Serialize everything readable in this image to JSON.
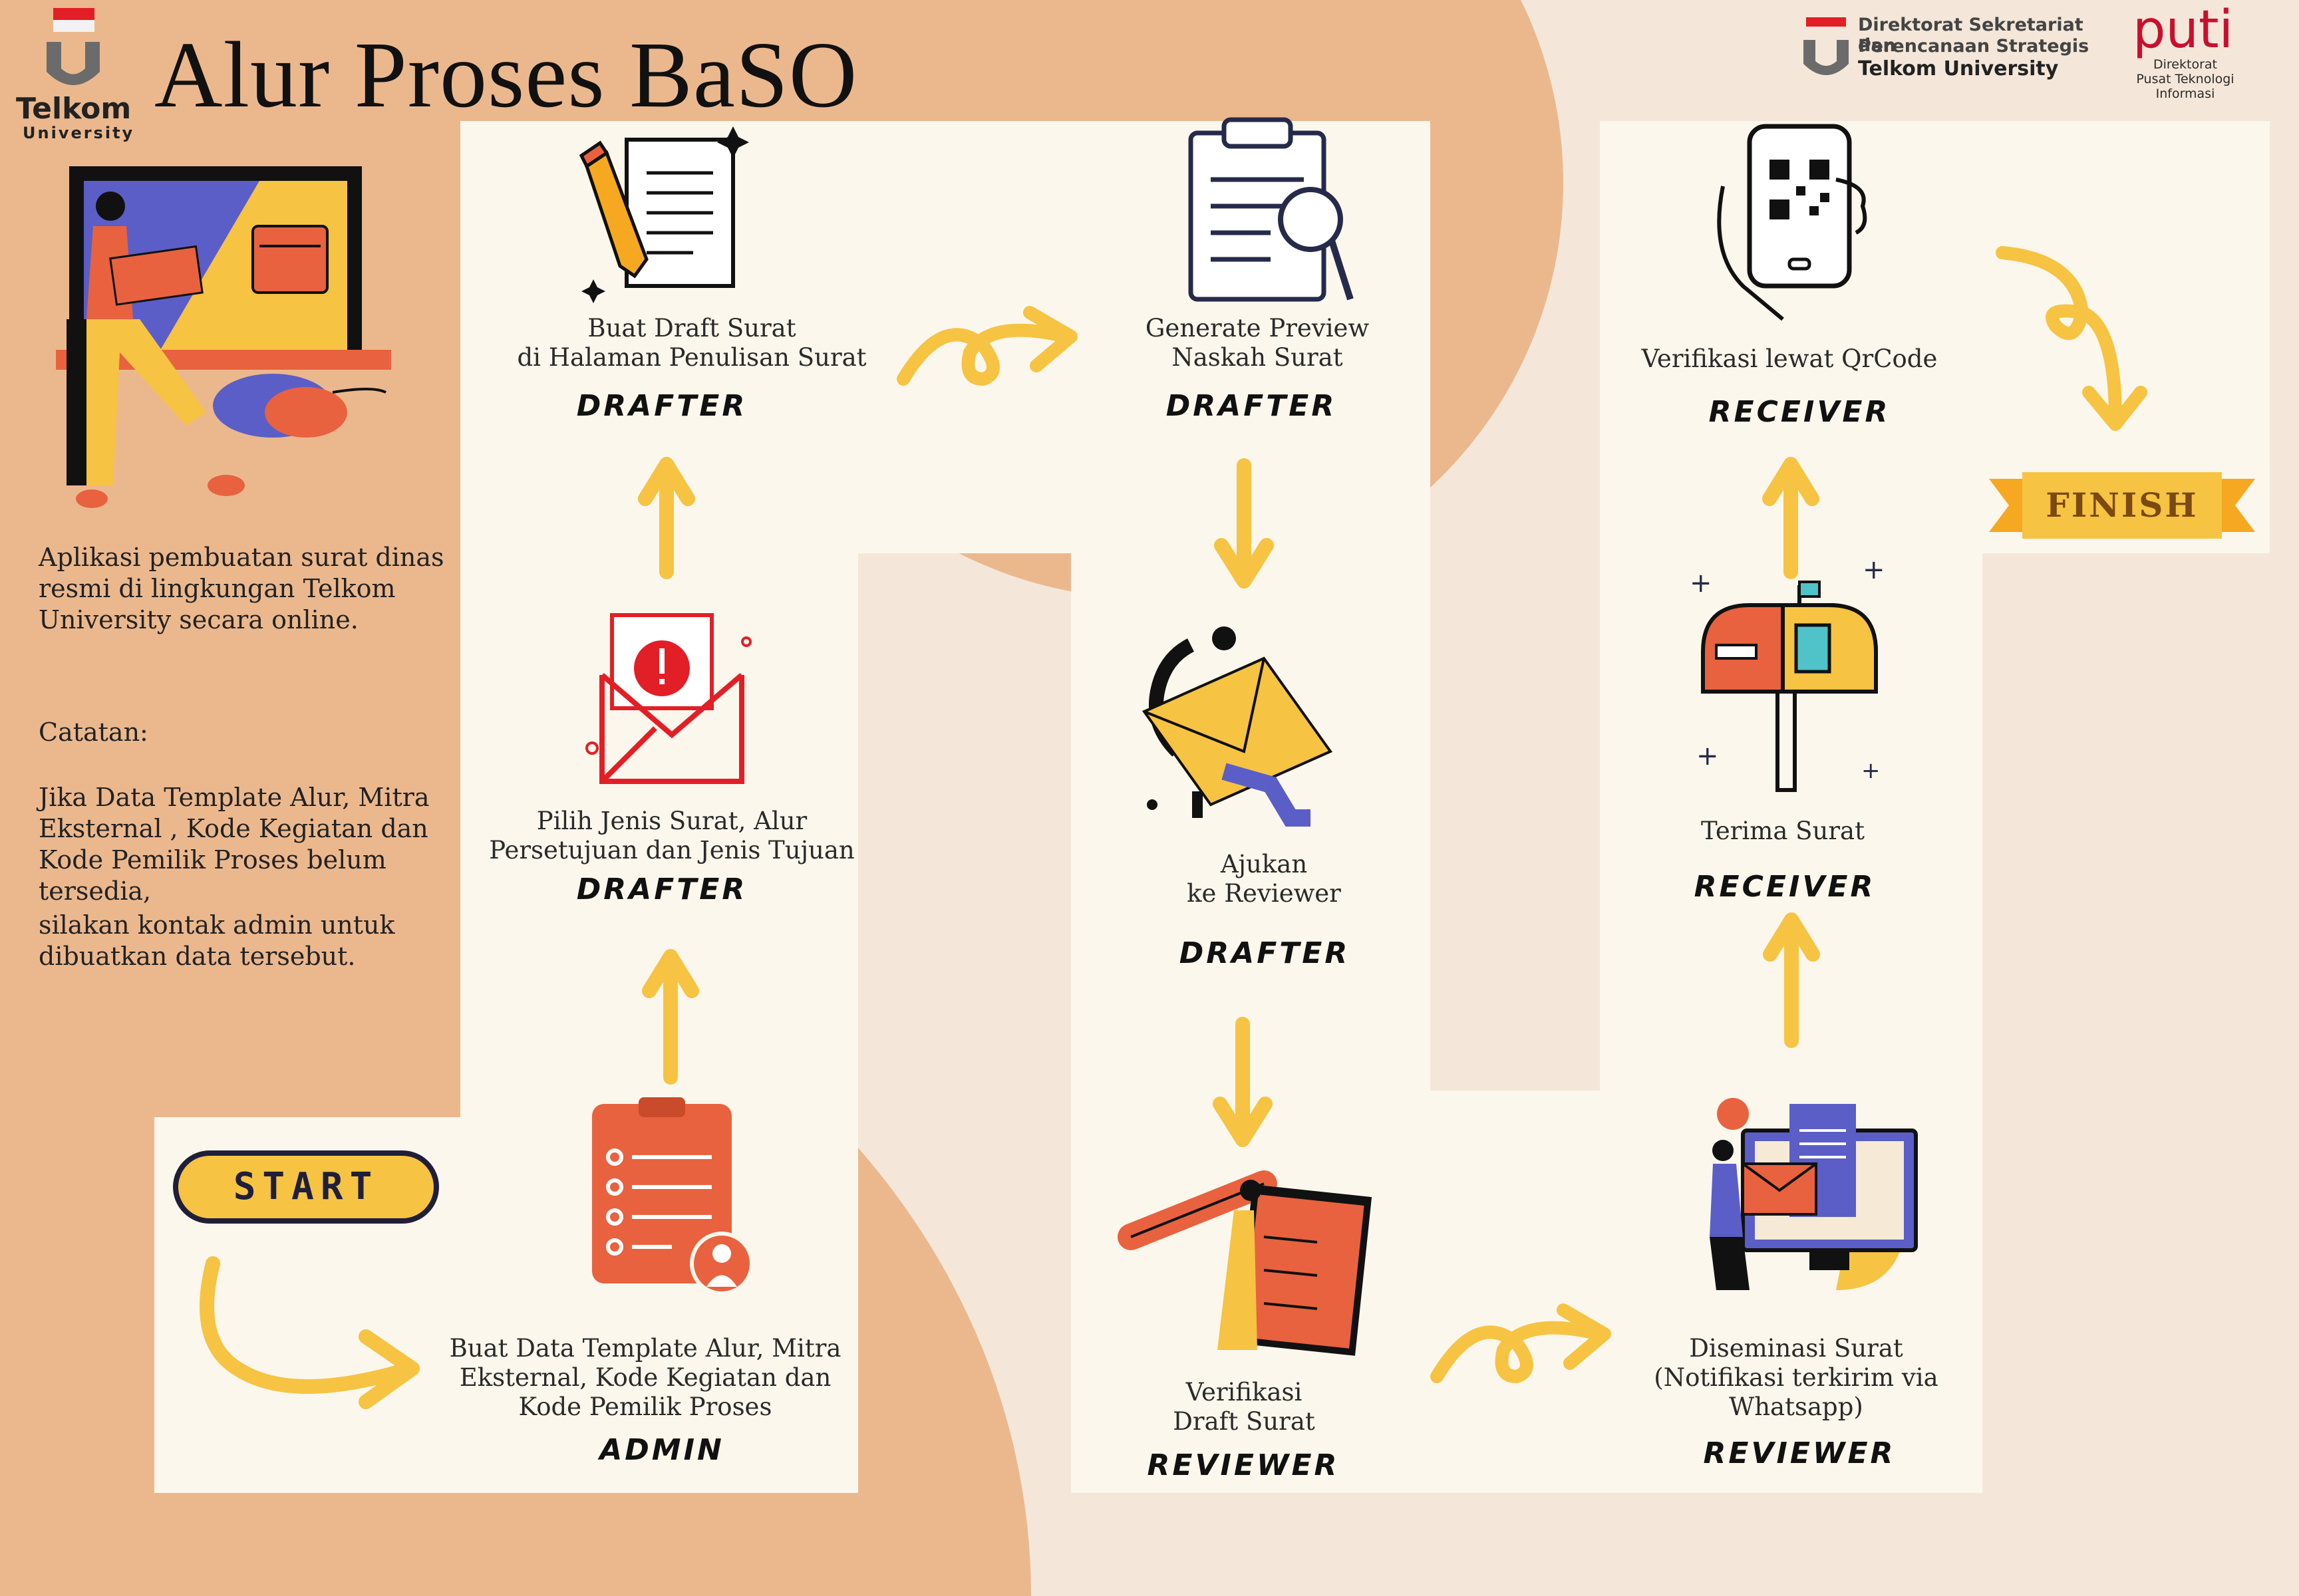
{
  "header": {
    "title": "Alur Proses BaSO",
    "tu_logo": {
      "name": "Telkom",
      "sub": "University"
    },
    "dss_logo": {
      "line1": "Direktorat Sekretariat dan",
      "line2": "Perencanaan Strategis",
      "line3": "Telkom University"
    },
    "puti_logo": {
      "mark": "puti",
      "line1": "Direktorat",
      "line2": "Pusat Teknologi",
      "line3": "Informasi"
    }
  },
  "intro": {
    "description": "Aplikasi pembuatan surat dinas resmi di lingkungan Telkom University secara online.",
    "note_label": "Catatan:",
    "note_line1": "Jika Data Template Alur, Mitra Eksternal , Kode Kegiatan dan Kode Pemilik Proses belum tersedia,",
    "note_line2": "silakan kontak admin untuk dibuatkan data tersebut."
  },
  "start_label": "START",
  "finish_label": "FINISH",
  "steps": [
    {
      "line1": "Buat Data Template Alur, Mitra",
      "line2": "Eksternal, Kode Kegiatan dan",
      "line3": "Kode Pemilik Proses",
      "role": "ADMIN",
      "icon": "clipboard-user-icon"
    },
    {
      "line1": "Pilih Jenis Surat, Alur",
      "line2": "Persetujuan dan Jenis Tujuan",
      "role": "DRAFTER",
      "icon": "alert-envelope-icon"
    },
    {
      "line1": "Buat Draft Surat",
      "line2": "di Halaman Penulisan Surat",
      "role": "DRAFTER",
      "icon": "pencil-document-icon"
    },
    {
      "line1": "Generate Preview",
      "line2": "Naskah Surat",
      "role": "DRAFTER",
      "icon": "clipboard-search-icon"
    },
    {
      "line1": "Ajukan",
      "line2": "ke Reviewer",
      "role": "DRAFTER",
      "icon": "person-envelope-icon"
    },
    {
      "line1": "Verifikasi",
      "line2": "Draft Surat",
      "role": "REVIEWER",
      "icon": "person-clipboard-icon"
    },
    {
      "line1": "Diseminasi Surat",
      "line2": "(Notifikasi terkirim via",
      "line3": "Whatsapp)",
      "role": "REVIEWER",
      "icon": "monitor-document-icon"
    },
    {
      "line1": "Terima Surat",
      "role": "RECEIVER",
      "icon": "mailbox-icon"
    },
    {
      "line1": "Verifikasi lewat QrCode",
      "role": "RECEIVER",
      "icon": "phone-qrcode-icon"
    }
  ],
  "colors": {
    "background": "#f4e7d9",
    "blob": "#ebb88e",
    "panel": "#fbf7ec",
    "arrow": "#f6c343",
    "accent": "#e8623f",
    "navy": "#262a4a"
  }
}
